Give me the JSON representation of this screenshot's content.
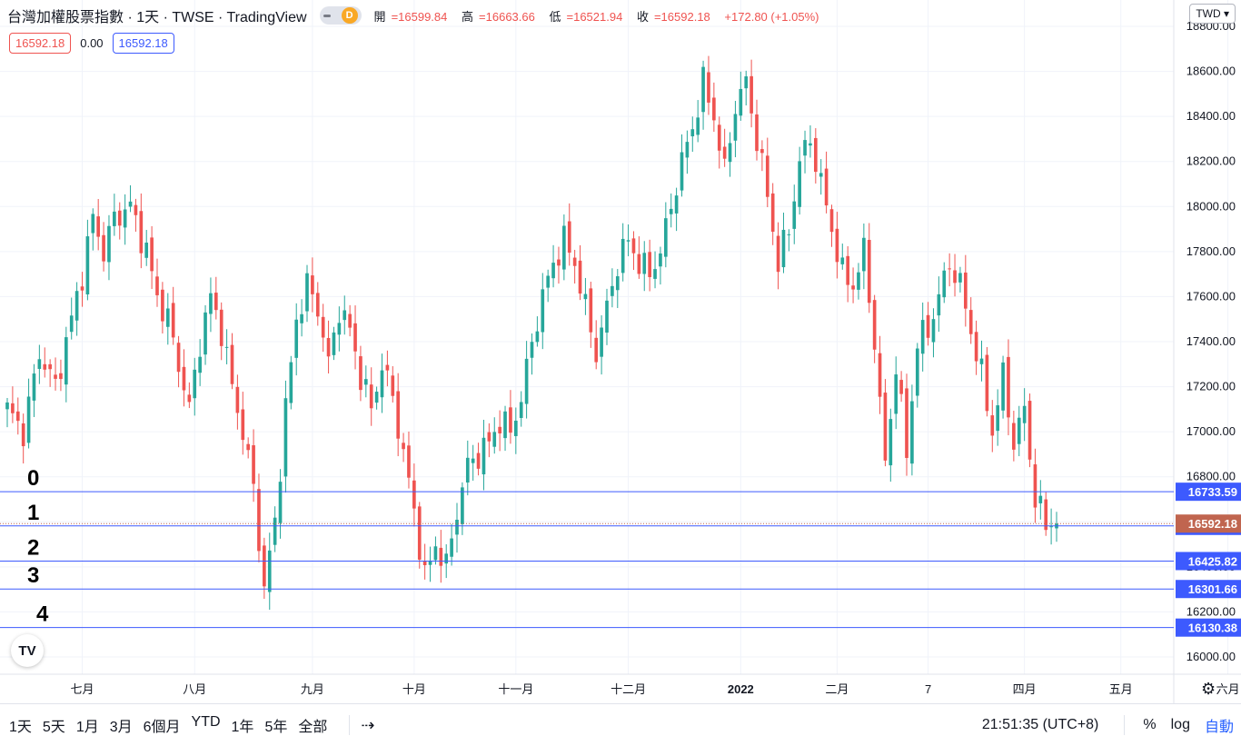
{
  "header": {
    "title": "台灣加權股票指數 · 1天 · TWSE · TradingView",
    "interval_badge": "D",
    "ohlc": [
      {
        "label": "開",
        "value": "=16599.84"
      },
      {
        "label": "高",
        "value": "=16663.66"
      },
      {
        "label": "低",
        "value": "=16521.94"
      },
      {
        "label": "收",
        "value": "=16592.18"
      },
      {
        "label": "",
        "value": "+172.80 (+1.05%)"
      }
    ]
  },
  "indicator_badges": {
    "left": "16592.18",
    "middle": "0.00",
    "right": "16592.18"
  },
  "currency_button": "TWD ▾",
  "logo_text": "TV",
  "colors": {
    "up": "#26a69a",
    "down": "#ef5350",
    "line": "#3d5afe",
    "price_label": "#c0654f",
    "grid": "#f0f3fa"
  },
  "chart_data": {
    "type": "candlestick",
    "y_axis": {
      "min": 15950,
      "max": 18750,
      "ticks": [
        "16000.00",
        "16200.00",
        "16400.00",
        "16600.00",
        "16800.00",
        "17000.00",
        "17200.00",
        "17400.00",
        "17600.00",
        "17800.00",
        "18000.00",
        "18200.00",
        "18400.00",
        "18600.00",
        "18800.00"
      ]
    },
    "x_ticks": [
      {
        "label": "七月",
        "i": 14
      },
      {
        "label": "八月",
        "i": 35
      },
      {
        "label": "九月",
        "i": 57
      },
      {
        "label": "十月",
        "i": 76
      },
      {
        "label": "十一月",
        "i": 95
      },
      {
        "label": "十二月",
        "i": 116
      },
      {
        "label": "2022",
        "i": 137
      },
      {
        "label": "二月",
        "i": 155
      },
      {
        "label": "7",
        "i": 172
      },
      {
        "label": "四月",
        "i": 190
      },
      {
        "label": "五月",
        "i": 208
      },
      {
        "label": "六月",
        "i": 228
      }
    ],
    "horizontal_lines": [
      {
        "label": "0",
        "value": 16733.59,
        "price_text": "16733.59"
      },
      {
        "label": "1",
        "value": 16581.91,
        "price_text": "16581.91"
      },
      {
        "label": "2",
        "value": 16425.82,
        "price_text": "16425.82"
      },
      {
        "label": "3",
        "value": 16301.66,
        "price_text": "16301.66"
      },
      {
        "label": "4",
        "value": 16130.38,
        "price_text": "16130.38"
      }
    ],
    "last_price": {
      "value": 16592.18,
      "text": "16592.18"
    },
    "anchors": [
      [
        0,
        17100
      ],
      [
        3,
        17000
      ],
      [
        6,
        17350
      ],
      [
        9,
        17200
      ],
      [
        12,
        17500
      ],
      [
        14,
        17700
      ],
      [
        16,
        17950
      ],
      [
        18,
        17800
      ],
      [
        20,
        17950
      ],
      [
        23,
        18000
      ],
      [
        26,
        17800
      ],
      [
        28,
        17600
      ],
      [
        30,
        17500
      ],
      [
        32,
        17300
      ],
      [
        34,
        17100
      ],
      [
        36,
        17400
      ],
      [
        38,
        17600
      ],
      [
        40,
        17450
      ],
      [
        42,
        17200
      ],
      [
        44,
        17000
      ],
      [
        46,
        16750
      ],
      [
        48,
        16300
      ],
      [
        50,
        16600
      ],
      [
        52,
        17100
      ],
      [
        54,
        17500
      ],
      [
        56,
        17650
      ],
      [
        58,
        17550
      ],
      [
        60,
        17300
      ],
      [
        62,
        17550
      ],
      [
        64,
        17450
      ],
      [
        66,
        17250
      ],
      [
        68,
        17100
      ],
      [
        70,
        17300
      ],
      [
        72,
        17150
      ],
      [
        74,
        16900
      ],
      [
        76,
        16650
      ],
      [
        78,
        16350
      ],
      [
        80,
        16500
      ],
      [
        82,
        16400
      ],
      [
        84,
        16650
      ],
      [
        86,
        16850
      ],
      [
        88,
        16900
      ],
      [
        90,
        16950
      ],
      [
        92,
        17050
      ],
      [
        94,
        17000
      ],
      [
        96,
        17150
      ],
      [
        98,
        17400
      ],
      [
        100,
        17600
      ],
      [
        102,
        17750
      ],
      [
        104,
        17850
      ],
      [
        106,
        17750
      ],
      [
        108,
        17550
      ],
      [
        110,
        17350
      ],
      [
        112,
        17550
      ],
      [
        114,
        17750
      ],
      [
        116,
        17850
      ],
      [
        118,
        17750
      ],
      [
        120,
        17700
      ],
      [
        122,
        17800
      ],
      [
        124,
        18000
      ],
      [
        126,
        18200
      ],
      [
        128,
        18350
      ],
      [
        130,
        18550
      ],
      [
        132,
        18400
      ],
      [
        134,
        18150
      ],
      [
        136,
        18450
      ],
      [
        138,
        18550
      ],
      [
        140,
        18300
      ],
      [
        142,
        18050
      ],
      [
        144,
        17750
      ],
      [
        146,
        17900
      ],
      [
        148,
        18200
      ],
      [
        150,
        18300
      ],
      [
        152,
        18100
      ],
      [
        154,
        17900
      ],
      [
        156,
        17700
      ],
      [
        158,
        17650
      ],
      [
        160,
        17800
      ],
      [
        162,
        17400
      ],
      [
        164,
        16850
      ],
      [
        166,
        17300
      ],
      [
        168,
        16900
      ],
      [
        170,
        17400
      ],
      [
        172,
        17450
      ],
      [
        174,
        17600
      ],
      [
        176,
        17750
      ],
      [
        178,
        17650
      ],
      [
        180,
        17450
      ],
      [
        182,
        17250
      ],
      [
        184,
        17000
      ],
      [
        186,
        17250
      ],
      [
        188,
        16950
      ],
      [
        190,
        17100
      ],
      [
        192,
        16700
      ],
      [
        194,
        16590
      ],
      [
        196,
        16600
      ]
    ],
    "bars_count": 197
  },
  "bottom_bar": {
    "timeframes": [
      "1天",
      "5天",
      "1月",
      "3月",
      "6個月",
      "YTD",
      "1年",
      "5年",
      "全部"
    ],
    "calendar_icon": "calendar-icon",
    "time": "21:51:35 (UTC+8)",
    "percent": "%",
    "log": "log",
    "auto": "自動"
  }
}
